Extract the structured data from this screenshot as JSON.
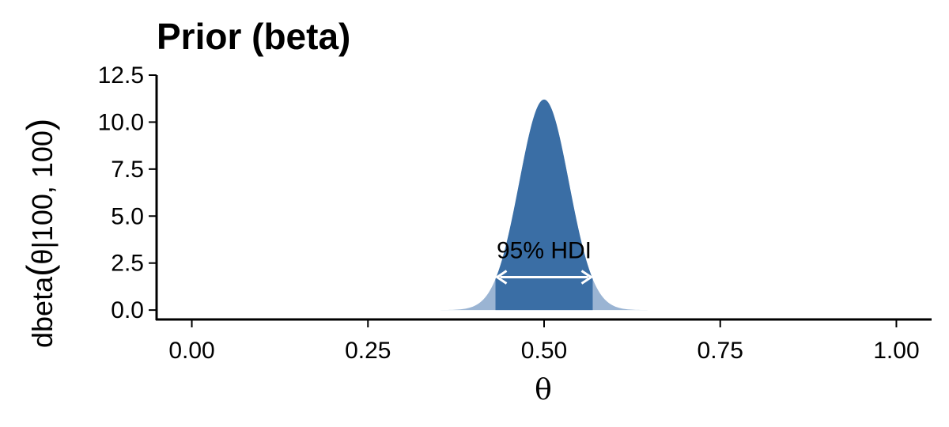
{
  "chart_data": {
    "type": "area",
    "title": "Prior (beta)",
    "xlabel": "θ",
    "ylabel_prefix": "dbeta",
    "ylabel_paren_open": "(",
    "ylabel_args": "θ|100, 100",
    "ylabel_paren_close": ")",
    "distribution": {
      "name": "beta",
      "alpha": 100,
      "beta": 100,
      "peak_density": 11.2
    },
    "xlim": [
      -0.05,
      1.05
    ],
    "ylim": [
      -0.5,
      12.5
    ],
    "x_ticks": [
      0,
      0.25,
      0.5,
      0.75,
      1
    ],
    "x_tick_labels": [
      "0.00",
      "0.25",
      "0.50",
      "0.75",
      "1.00"
    ],
    "y_ticks": [
      0,
      2.5,
      5,
      7.5,
      10,
      12.5
    ],
    "y_tick_labels": [
      "0.0",
      "2.5",
      "5.0",
      "7.5",
      "10.0",
      "12.5"
    ],
    "hdi": {
      "label": "95% HDI",
      "lower": 0.431,
      "upper": 0.569,
      "arrow_y": 1.75
    },
    "colors": {
      "hdi_fill": "#3a6ea5",
      "tail_fill": "#9ab4d3",
      "arrow": "#ffffff",
      "axis": "#000000"
    }
  }
}
